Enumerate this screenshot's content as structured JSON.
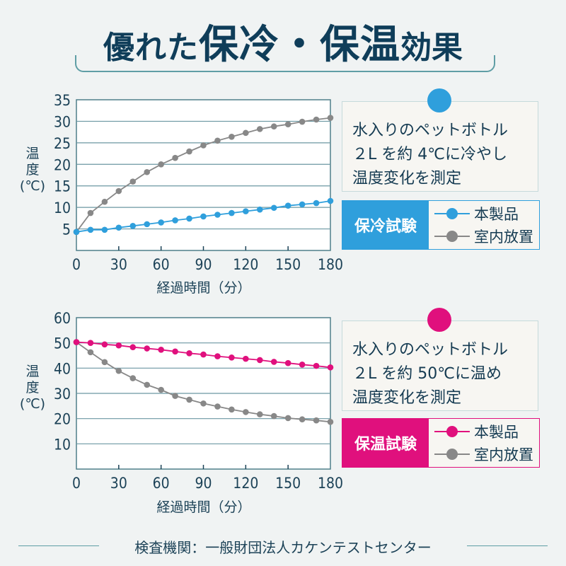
{
  "header": {
    "title_part1": "優れた",
    "title_part2": "保冷・保温",
    "title_part3": "効果"
  },
  "colors": {
    "cold": "#2f9fdc",
    "hot": "#e0107d",
    "room": "#888888",
    "navy": "#0f3d59"
  },
  "cold_panel": {
    "info_lines": [
      "水入りのペットボトル",
      "２L を約 4℃に冷やし",
      "温度変化を測定"
    ],
    "tag": "保冷試験",
    "legend": [
      "本製品",
      "室内放置"
    ]
  },
  "hot_panel": {
    "info_lines": [
      "水入りのペットボトル",
      "２L を約 50℃に温め",
      "温度変化を測定"
    ],
    "tag": "保温試験",
    "legend": [
      "本製品",
      "室内放置"
    ]
  },
  "footer": {
    "text": "検査機関：一般財団法人カケンテストセンター"
  },
  "chart_data": [
    {
      "type": "line",
      "title": "保冷試験",
      "xlabel": "経過時間（分）",
      "ylabel": [
        "温",
        "度",
        "(℃)"
      ],
      "xlim": [
        0,
        180
      ],
      "ylim": [
        0,
        35
      ],
      "xticks": [
        0,
        30,
        60,
        90,
        120,
        150,
        180
      ],
      "yticks": [
        5,
        10,
        15,
        20,
        25,
        30,
        35
      ],
      "grid": true,
      "legend_position": "right",
      "x": [
        0,
        10,
        20,
        30,
        40,
        50,
        60,
        70,
        80,
        90,
        100,
        110,
        120,
        130,
        140,
        150,
        160,
        170,
        180
      ],
      "series": [
        {
          "name": "本製品",
          "color": "#2f9fdc",
          "values": [
            4.3,
            4.8,
            4.8,
            5.3,
            5.7,
            6.1,
            6.5,
            7.0,
            7.4,
            7.9,
            8.3,
            8.7,
            9.1,
            9.5,
            9.9,
            10.4,
            10.7,
            11.0,
            11.5
          ]
        },
        {
          "name": "室内放置",
          "color": "#888888",
          "values": [
            4.3,
            8.7,
            11.3,
            13.8,
            16.0,
            18.2,
            20.0,
            21.5,
            23.0,
            24.4,
            25.5,
            26.4,
            27.3,
            28.2,
            28.8,
            29.3,
            29.9,
            30.4,
            30.8
          ]
        }
      ]
    },
    {
      "type": "line",
      "title": "保温試験",
      "xlabel": "経過時間（分）",
      "ylabel": [
        "温",
        "度",
        "(℃)"
      ],
      "xlim": [
        0,
        180
      ],
      "ylim": [
        0,
        60
      ],
      "xticks": [
        0,
        30,
        60,
        90,
        120,
        150,
        180
      ],
      "yticks": [
        10,
        20,
        30,
        40,
        50,
        60
      ],
      "grid": true,
      "legend_position": "right",
      "x": [
        0,
        10,
        20,
        30,
        40,
        50,
        60,
        70,
        80,
        90,
        100,
        110,
        120,
        130,
        140,
        150,
        160,
        170,
        180
      ],
      "series": [
        {
          "name": "本製品",
          "color": "#e0107d",
          "values": [
            50.3,
            50.0,
            49.4,
            49.0,
            48.3,
            47.8,
            47.3,
            46.6,
            45.9,
            45.4,
            44.7,
            44.2,
            43.7,
            43.2,
            42.5,
            42.0,
            41.4,
            40.9,
            40.3
          ]
        },
        {
          "name": "室内放置",
          "color": "#888888",
          "values": [
            50.3,
            46.3,
            42.4,
            38.9,
            36.0,
            33.4,
            31.4,
            29.0,
            27.5,
            26.0,
            24.8,
            23.6,
            22.6,
            21.7,
            21.0,
            20.2,
            19.7,
            19.3,
            18.7
          ]
        }
      ]
    }
  ]
}
